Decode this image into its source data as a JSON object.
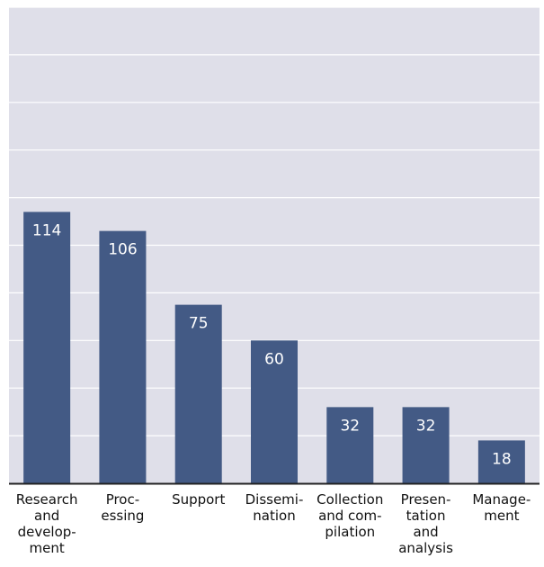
{
  "chart_data": {
    "type": "bar",
    "title": "",
    "xlabel": "",
    "ylabel": "",
    "categories": [
      "Research and development",
      "Processing",
      "Support",
      "Dissemination",
      "Collection and compilation",
      "Presentation and analysis",
      "Management"
    ],
    "category_lines": [
      [
        "Research",
        "and",
        "develop-",
        "ment"
      ],
      [
        "Proc-",
        "essing"
      ],
      [
        "Support"
      ],
      [
        "Dissemi-",
        "nation"
      ],
      [
        "Collection",
        "and com-",
        "pilation"
      ],
      [
        "Presen-",
        "tation",
        "and",
        "analysis"
      ],
      [
        "Manage-",
        "ment"
      ]
    ],
    "values": [
      114,
      106,
      75,
      60,
      32,
      32,
      18
    ],
    "ylim": [
      0,
      200
    ],
    "gridlines": [
      0,
      20,
      40,
      60,
      80,
      100,
      120,
      140,
      160,
      180,
      200
    ],
    "grid": true,
    "legend": "none",
    "colors": {
      "bar": "#435a85",
      "plot_background": "#dfdfe9",
      "grid": "#ffffff",
      "baseline": "#222222",
      "data_label": "#ffffff",
      "tick_label": "#111111"
    }
  }
}
